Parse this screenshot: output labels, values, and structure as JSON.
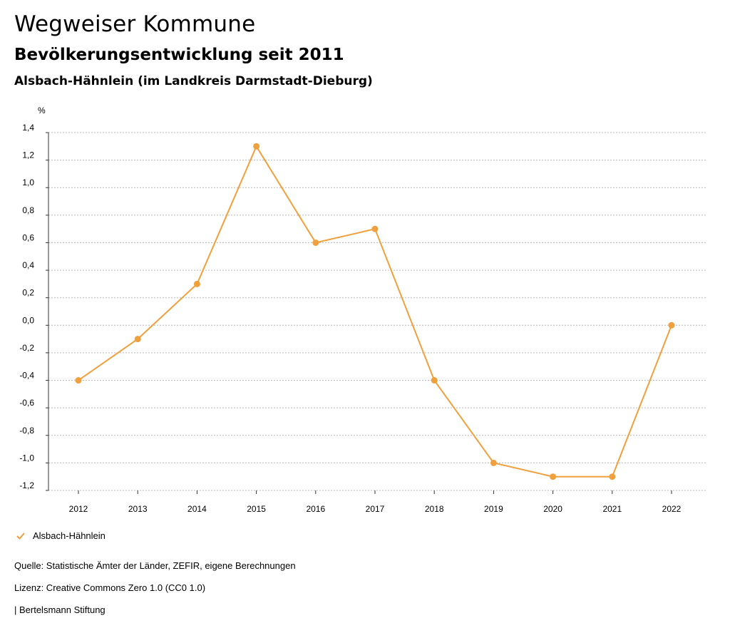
{
  "header": {
    "title": "Wegweiser Kommune",
    "subtitle": "Bevölkerungsentwicklung seit 2011",
    "region": "Alsbach-Hähnlein (im Landkreis Darmstadt-Dieburg)"
  },
  "chart_data": {
    "type": "line",
    "title": "Bevölkerungsentwicklung seit 2011",
    "ylabel": "%",
    "xlabel": "",
    "x": [
      "2012",
      "2013",
      "2014",
      "2015",
      "2016",
      "2017",
      "2018",
      "2019",
      "2020",
      "2021",
      "2022"
    ],
    "series": [
      {
        "name": "Alsbach-Hähnlein",
        "color": "#f0a03c",
        "values": [
          -0.4,
          -0.1,
          0.3,
          1.3,
          0.6,
          0.7,
          -0.4,
          -1.0,
          -1.1,
          -1.1,
          0.0
        ]
      }
    ],
    "ylim": [
      -1.2,
      1.4
    ],
    "yticks": [
      1.4,
      1.2,
      1.0,
      0.8,
      0.6,
      0.4,
      0.2,
      0.0,
      -0.2,
      -0.4,
      -0.6,
      -0.8,
      -1.0,
      -1.2
    ],
    "ytick_labels": [
      "1,4",
      "1,2",
      "1,0",
      "0,8",
      "0,6",
      "0,4",
      "0,2",
      "0,0",
      "-0,2",
      "-0,4",
      "-0,6",
      "-0,8",
      "-1,0",
      "-1,2"
    ],
    "grid": true,
    "legend_position": "bottom-left"
  },
  "legend": {
    "label": "Alsbach-Hähnlein",
    "icon": "check-icon"
  },
  "footer": {
    "source": "Quelle: Statistische Ämter der Länder, ZEFIR, eigene Berechnungen",
    "license": "Lizenz: Creative Commons Zero 1.0 (CC0 1.0)",
    "publisher": "| Bertelsmann Stiftung"
  }
}
